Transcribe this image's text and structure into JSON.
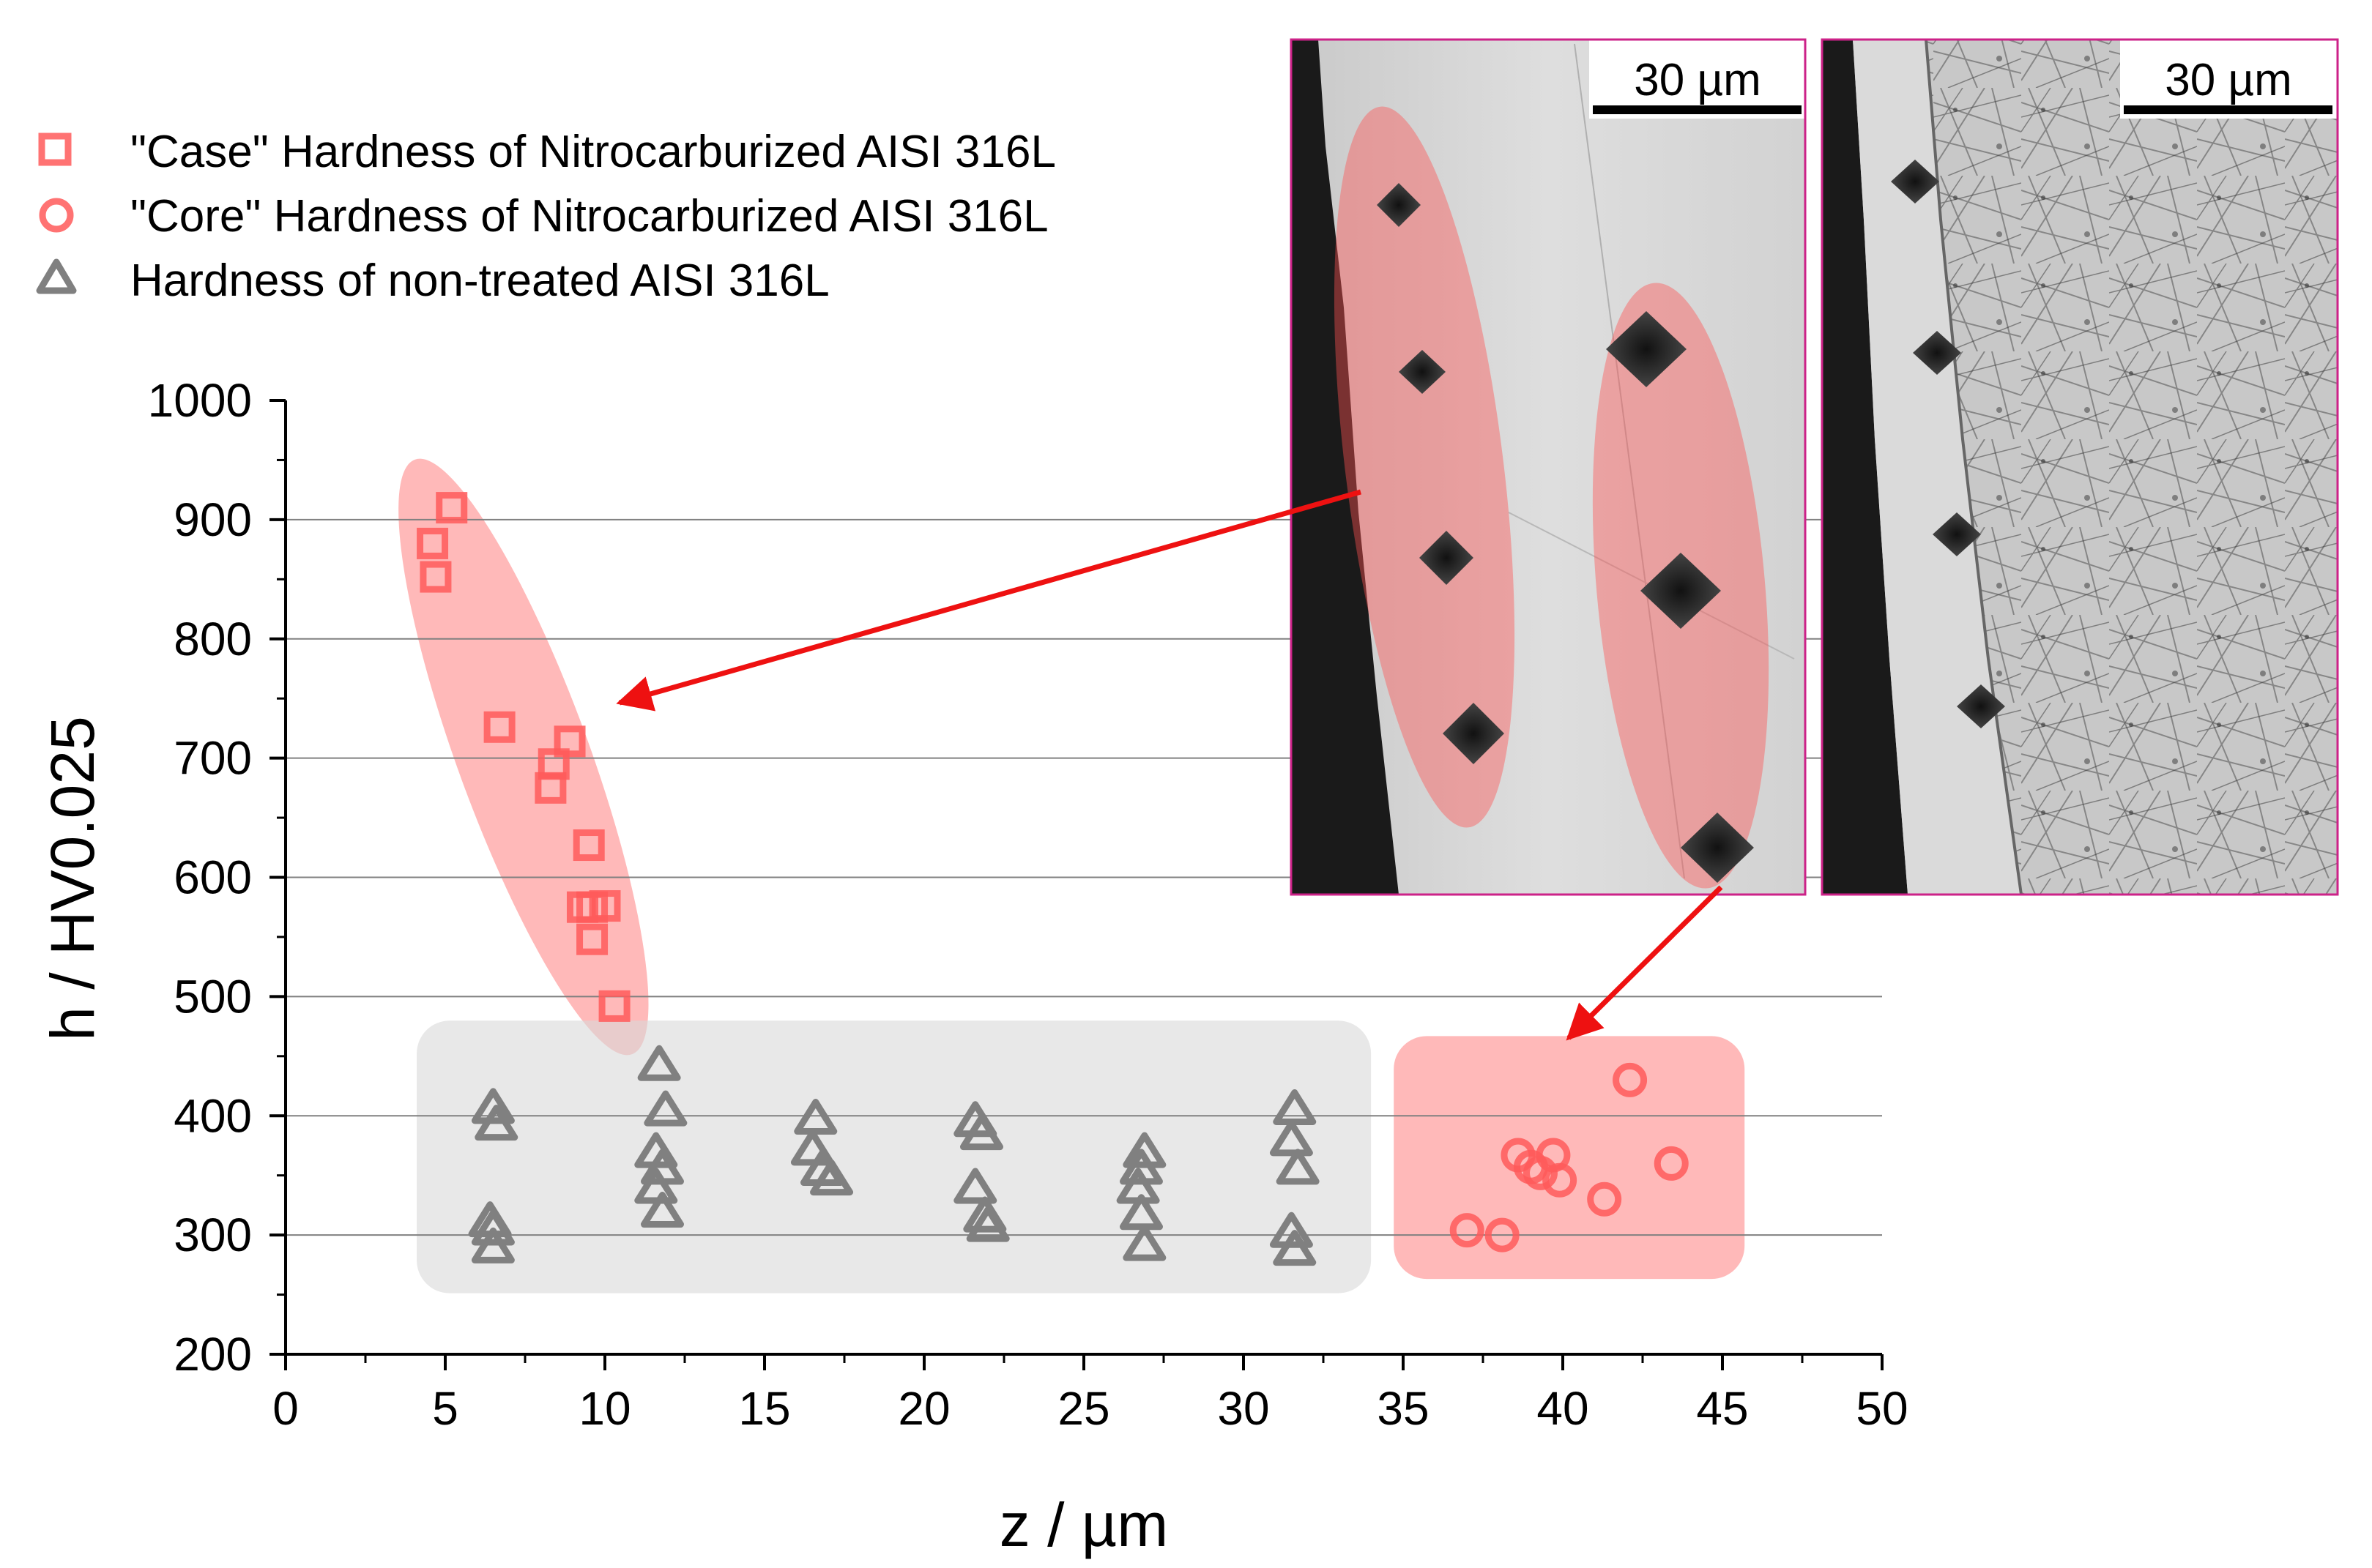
{
  "chart_data": {
    "type": "scatter",
    "xlabel": "z / µm",
    "ylabel": "h / HV0.025",
    "xlim": [
      0,
      50
    ],
    "ylim": [
      200,
      1000
    ],
    "x_ticks": [
      0,
      5,
      10,
      15,
      20,
      25,
      30,
      35,
      40,
      45,
      50
    ],
    "y_ticks": [
      200,
      300,
      400,
      500,
      600,
      700,
      800,
      900,
      1000
    ],
    "grid": {
      "horizontal": true,
      "vertical": false
    },
    "legend_position": "top-left",
    "series": [
      {
        "name": "\"Case\" Hardness of Nitrocarburized AISI 316L",
        "marker": "square",
        "color": "#ff5a5a",
        "points": [
          [
            4.6,
            880
          ],
          [
            5.2,
            910
          ],
          [
            4.7,
            852
          ],
          [
            6.7,
            726
          ],
          [
            8.9,
            714
          ],
          [
            8.4,
            695
          ],
          [
            8.3,
            675
          ],
          [
            9.5,
            627
          ],
          [
            9.3,
            575
          ],
          [
            9.6,
            575
          ],
          [
            10.0,
            576
          ],
          [
            9.6,
            548
          ],
          [
            10.3,
            492
          ]
        ]
      },
      {
        "name": "\"Core\" Hardness of Nitrocarburized AISI 316L",
        "marker": "circle",
        "color": "#ff5a5a",
        "points": [
          [
            42.1,
            430
          ],
          [
            38.6,
            367
          ],
          [
            39.7,
            367
          ],
          [
            39.0,
            357
          ],
          [
            39.3,
            352
          ],
          [
            39.9,
            346
          ],
          [
            43.4,
            360
          ],
          [
            41.3,
            330
          ],
          [
            37.0,
            304
          ],
          [
            38.1,
            300
          ]
        ]
      },
      {
        "name": "Hardness of non-treated AISI 316L",
        "marker": "triangle",
        "color": "#808080",
        "points": [
          [
            6.5,
            407
          ],
          [
            6.6,
            393
          ],
          [
            6.4,
            312
          ],
          [
            6.5,
            305
          ],
          [
            6.5,
            290
          ],
          [
            11.7,
            443
          ],
          [
            11.9,
            405
          ],
          [
            11.6,
            370
          ],
          [
            11.8,
            356
          ],
          [
            11.6,
            340
          ],
          [
            11.8,
            320
          ],
          [
            16.6,
            398
          ],
          [
            16.5,
            372
          ],
          [
            16.8,
            355
          ],
          [
            17.1,
            347
          ],
          [
            21.6,
            396
          ],
          [
            21.8,
            385
          ],
          [
            21.6,
            340
          ],
          [
            21.9,
            316
          ],
          [
            22.0,
            308
          ],
          [
            26.9,
            370
          ],
          [
            26.8,
            356
          ],
          [
            26.7,
            340
          ],
          [
            26.8,
            318
          ],
          [
            26.9,
            292
          ],
          [
            31.6,
            406
          ],
          [
            31.5,
            380
          ],
          [
            31.7,
            356
          ],
          [
            31.5,
            303
          ],
          [
            31.6,
            288
          ]
        ]
      }
    ],
    "highlight_regions": [
      {
        "shape": "ellipse",
        "group": "case",
        "color": "#ff8080"
      },
      {
        "shape": "rounded-rect",
        "group": "non-treated",
        "color": "#d9d9d9"
      },
      {
        "shape": "rounded-rect",
        "group": "core",
        "color": "#ff8080"
      }
    ],
    "insets": [
      {
        "type": "micrograph",
        "scale_bar_label": "30 µm",
        "indentation_groups_highlighted": 2
      },
      {
        "type": "micrograph",
        "scale_bar_label": "30 µm",
        "indentation_groups_highlighted": 0
      }
    ],
    "arrow_color": "#ee1111"
  }
}
